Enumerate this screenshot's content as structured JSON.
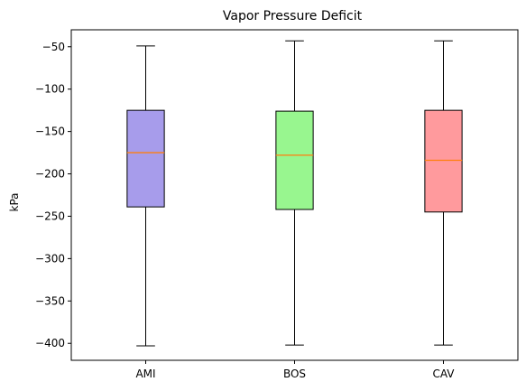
{
  "chart_data": {
    "type": "box",
    "title": "Vapor Pressure Deficit",
    "xlabel": "",
    "ylabel": "kPa",
    "ylim": [
      -420,
      -30
    ],
    "yticks": [
      -50,
      -100,
      -150,
      -200,
      -250,
      -300,
      -350,
      -400
    ],
    "ytick_labels": [
      "−50",
      "−100",
      "−150",
      "−200",
      "−250",
      "−300",
      "−350",
      "−400"
    ],
    "grid": false,
    "legend": "none",
    "categories": [
      "AMI",
      "BOS",
      "CAV"
    ],
    "boxes": [
      {
        "category": "AMI",
        "whisker_low": -403,
        "q1": -239,
        "median": -175,
        "q3": -125,
        "whisker_high": -49,
        "color": "#a79ceb"
      },
      {
        "category": "BOS",
        "whisker_low": -402,
        "q1": -242,
        "median": -178,
        "q3": -126,
        "whisker_high": -43,
        "color": "#98f68f"
      },
      {
        "category": "CAV",
        "whisker_low": -402,
        "q1": -245,
        "median": -184,
        "q3": -125,
        "whisker_high": -43,
        "color": "#ff9a9d"
      }
    ],
    "median_color": "#ff7f0e"
  }
}
